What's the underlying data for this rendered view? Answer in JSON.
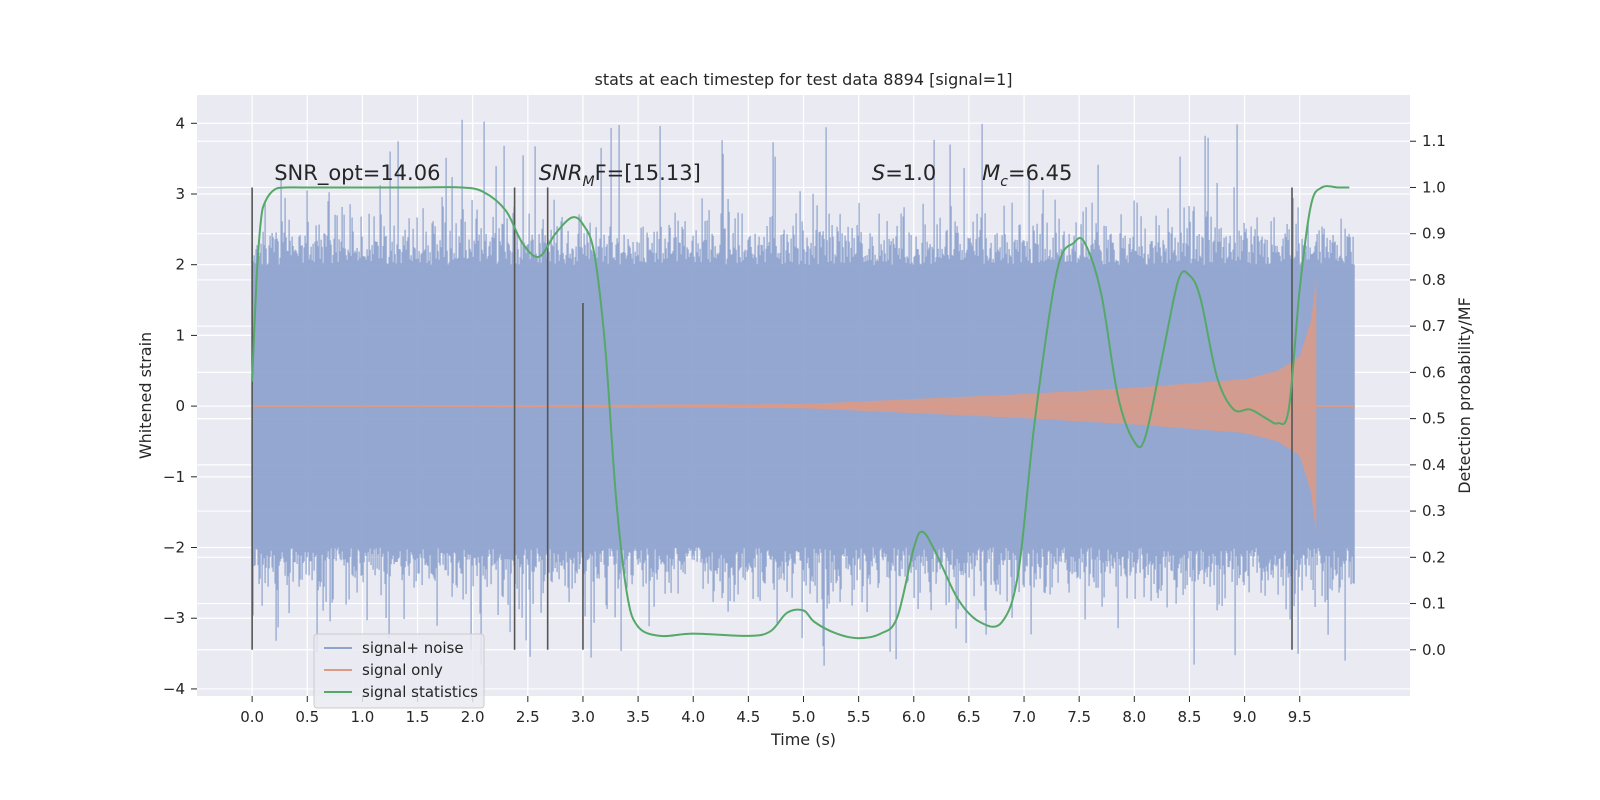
{
  "chart_data": {
    "type": "line",
    "title": "stats at each timestep for test data 8894 [signal=1]",
    "xlabel": "Time (s)",
    "ylabel": "Whitened strain",
    "y2label": "Detection probability/MF",
    "xlim": [
      -0.5,
      10.5
    ],
    "ylim": [
      -4.1,
      4.4
    ],
    "y2lim": [
      -0.1,
      1.2
    ],
    "xticks": [
      "0.0",
      "0.5",
      "1.0",
      "1.5",
      "2.0",
      "2.5",
      "3.0",
      "3.5",
      "4.0",
      "4.5",
      "5.0",
      "5.5",
      "6.0",
      "6.5",
      "7.0",
      "7.5",
      "8.0",
      "8.5",
      "9.0",
      "9.5"
    ],
    "yticks": [
      "4",
      "3",
      "2",
      "1",
      "0",
      "−1",
      "−2",
      "−3",
      "−4"
    ],
    "y2ticks": [
      "1.1",
      "1.0",
      "0.9",
      "0.8",
      "0.7",
      "0.6",
      "0.5",
      "0.4",
      "0.3",
      "0.2",
      "0.1",
      "0.0"
    ],
    "grid": true,
    "legend_position": "lower-left",
    "series": [
      {
        "name": "signal+ noise",
        "color": "#8fa3cf",
        "axis": "left",
        "style": "noise band",
        "x_range": [
          0.0,
          10.0
        ],
        "typical_range": [
          -2.0,
          2.0
        ],
        "peak_range": [
          -3.7,
          4.05
        ]
      },
      {
        "name": "signal only",
        "color": "#dd9a85",
        "axis": "left",
        "style": "chirp",
        "x_range": [
          0.0,
          9.65
        ],
        "envelope": {
          "x": [
            0.0,
            5.0,
            6.0,
            7.0,
            8.0,
            9.0,
            9.3,
            9.5,
            9.6,
            9.65
          ],
          "amp": [
            0.0,
            0.03,
            0.1,
            0.17,
            0.26,
            0.38,
            0.5,
            0.7,
            1.2,
            1.8
          ]
        }
      },
      {
        "name": "signal statistics",
        "color": "#55a868",
        "axis": "right",
        "x": [
          0.0,
          0.04,
          0.08,
          0.12,
          0.2,
          0.3,
          0.5,
          1.0,
          1.5,
          1.9,
          2.1,
          2.3,
          2.45,
          2.6,
          2.75,
          2.9,
          3.0,
          3.1,
          3.2,
          3.3,
          3.4,
          3.5,
          3.7,
          4.0,
          4.5,
          4.7,
          4.85,
          5.0,
          5.1,
          5.3,
          5.5,
          5.7,
          5.85,
          6.0,
          6.08,
          6.2,
          6.4,
          6.6,
          6.8,
          6.95,
          7.1,
          7.3,
          7.45,
          7.55,
          7.7,
          7.85,
          8.0,
          8.1,
          8.25,
          8.4,
          8.5,
          8.6,
          8.75,
          8.9,
          9.05,
          9.2,
          9.3,
          9.4,
          9.5,
          9.6,
          9.7,
          9.85,
          9.95
        ],
        "y": [
          0.58,
          0.8,
          0.93,
          0.97,
          0.995,
          1.0,
          1.0,
          1.0,
          1.0,
          1.0,
          0.99,
          0.95,
          0.88,
          0.85,
          0.9,
          0.935,
          0.92,
          0.86,
          0.66,
          0.33,
          0.12,
          0.05,
          0.03,
          0.035,
          0.03,
          0.04,
          0.08,
          0.085,
          0.06,
          0.035,
          0.025,
          0.035,
          0.07,
          0.22,
          0.255,
          0.21,
          0.11,
          0.06,
          0.06,
          0.17,
          0.5,
          0.82,
          0.88,
          0.88,
          0.77,
          0.55,
          0.45,
          0.46,
          0.63,
          0.8,
          0.81,
          0.76,
          0.59,
          0.52,
          0.52,
          0.5,
          0.49,
          0.52,
          0.78,
          0.96,
          1.0,
          1.0,
          1.0
        ]
      }
    ],
    "vertical_lines": [
      {
        "x": 0.0,
        "y2_range": [
          0.0,
          1.0
        ]
      },
      {
        "x": 2.38,
        "y2_range": [
          0.0,
          1.0
        ]
      },
      {
        "x": 2.68,
        "y2_range": [
          0.0,
          1.0
        ]
      },
      {
        "x": 3.0,
        "y2_range": [
          0.0,
          0.75
        ]
      },
      {
        "x": 9.43,
        "y2_range": [
          0.0,
          1.0
        ]
      }
    ],
    "annotations": {
      "snr_opt": {
        "x": 0.2,
        "y": 3.2,
        "text": "SNR_opt=14.06"
      },
      "snr_mf": {
        "x": 2.6,
        "y": 3.2,
        "var": "SNR",
        "sub": "M",
        "rest": "F=[15.13]"
      },
      "s": {
        "x": 5.62,
        "y": 3.2,
        "var": "S",
        "rest": "=1.0"
      },
      "mc": {
        "x": 6.62,
        "y": 3.2,
        "var": "M",
        "sub": "c",
        "rest": "=6.45"
      }
    }
  }
}
